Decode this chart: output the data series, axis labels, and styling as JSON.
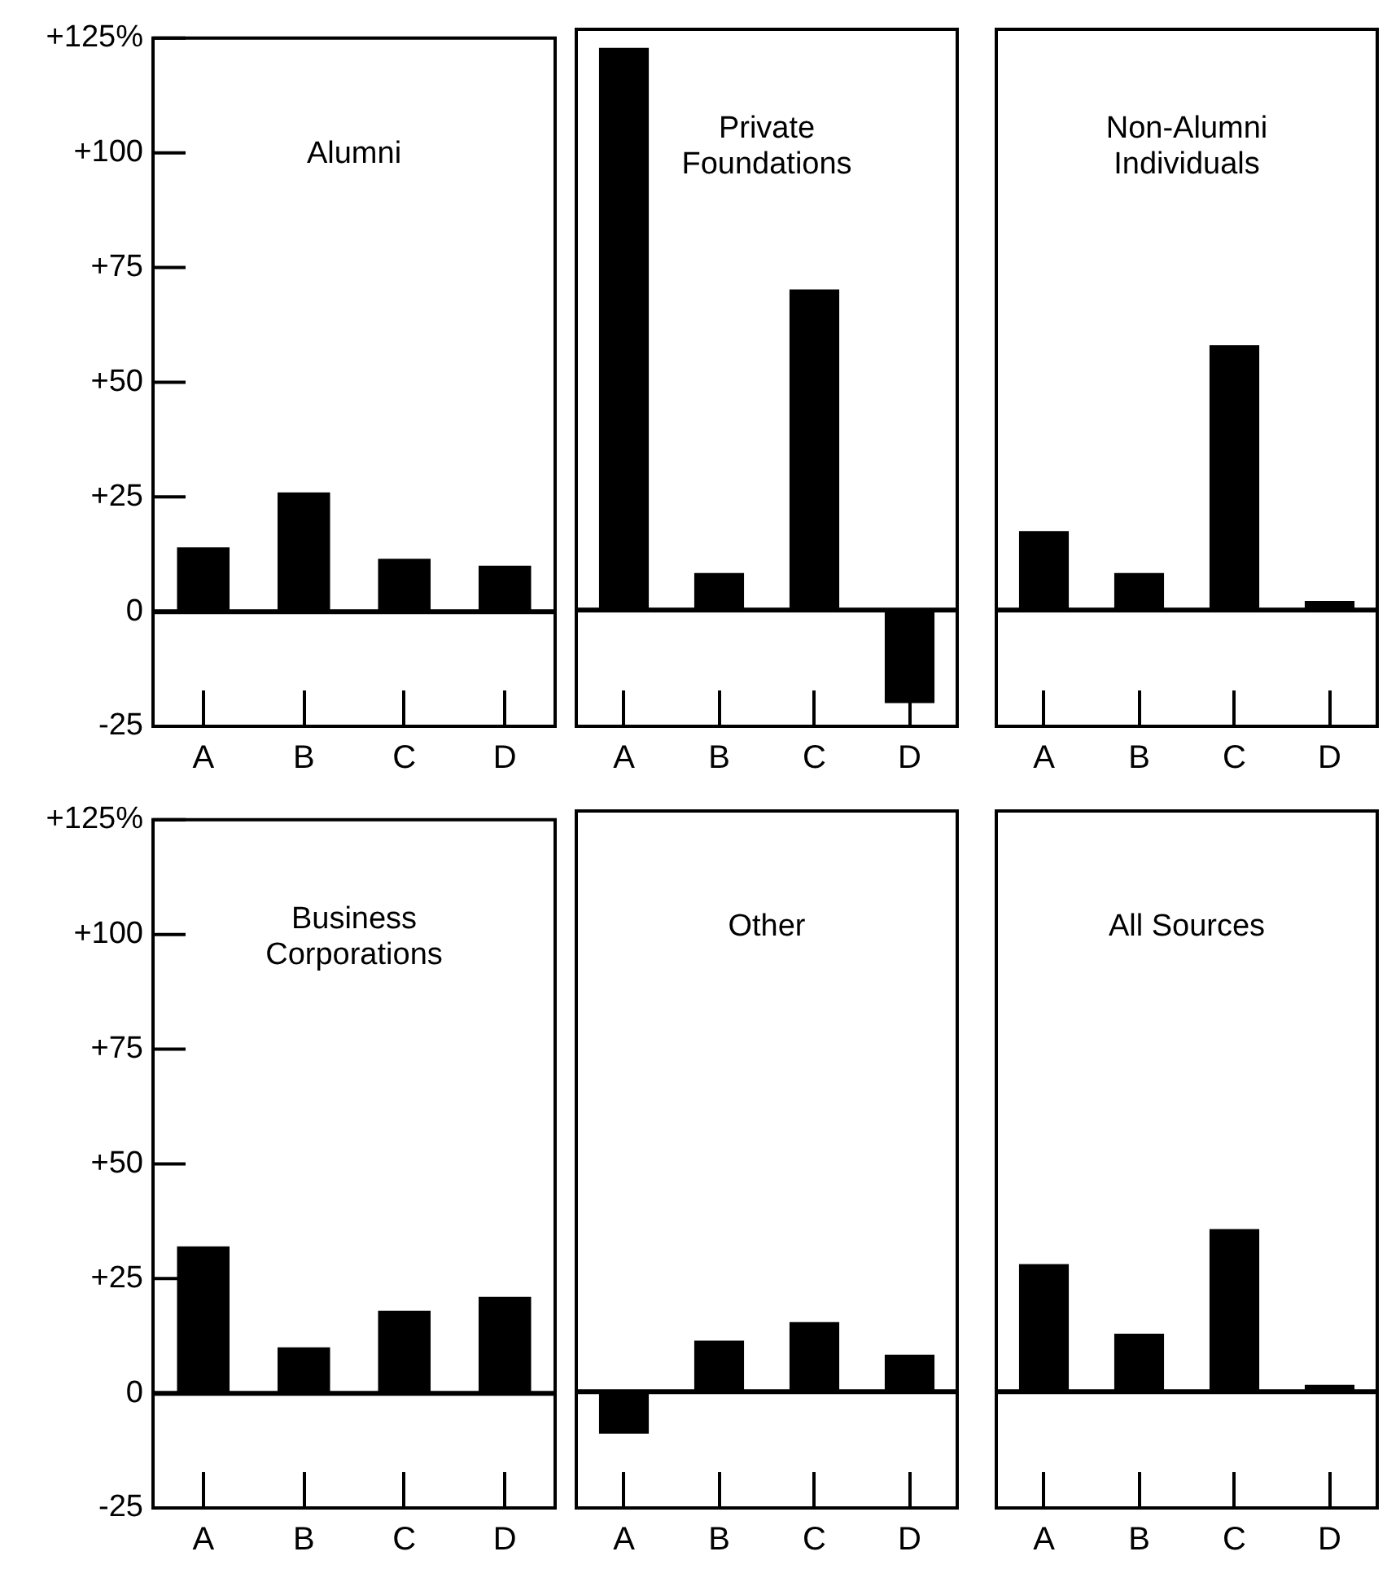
{
  "chart_data": [
    {
      "type": "bar",
      "title": "Alumni",
      "categories": [
        "A",
        "B",
        "C",
        "D"
      ],
      "values": [
        14,
        26,
        11.5,
        10
      ],
      "color": "#000000",
      "ylim": [
        -25,
        125
      ],
      "yticks": [
        {
          "value": -25,
          "label": "-25"
        },
        0,
        {
          "value": 25,
          "label": "+25"
        },
        {
          "value": 50,
          "label": "+50"
        },
        {
          "value": 75,
          "label": "+75"
        },
        {
          "value": 100,
          "label": "+100"
        },
        {
          "value": 125,
          "label": "+125%"
        }
      ],
      "ref_lines": [
        {
          "axis": "y",
          "value": 0
        }
      ],
      "grid": false,
      "legend": false
    },
    {
      "type": "bar",
      "title": "Private Foundations",
      "categories": [
        "A",
        "B",
        "C",
        "D"
      ],
      "values": [
        121,
        8,
        69,
        -20
      ],
      "color": "#000000",
      "ylim": [
        -25,
        125
      ],
      "yticks": [
        -25,
        0,
        25,
        50,
        75,
        100,
        125
      ],
      "tick_labels": "x",
      "ref_lines": [
        {
          "axis": "y",
          "value": 0
        }
      ],
      "grid": false,
      "legend": false
    },
    {
      "type": "bar",
      "title": "Non-Alumni Individuals",
      "categories": [
        "A",
        "B",
        "C",
        "D"
      ],
      "values": [
        17,
        8,
        57,
        2
      ],
      "color": "#000000",
      "ylim": [
        -25,
        125
      ],
      "yticks": [
        -25,
        0,
        25,
        50,
        75,
        100,
        125
      ],
      "tick_labels": "x",
      "ref_lines": [
        {
          "axis": "y",
          "value": 0
        }
      ],
      "grid": false,
      "legend": false
    },
    {
      "type": "bar",
      "title": "Business Corporations",
      "categories": [
        "A",
        "B",
        "C",
        "D"
      ],
      "values": [
        32,
        10,
        18,
        21
      ],
      "color": "#000000",
      "ylim": [
        -25,
        125
      ],
      "yticks": [
        {
          "value": -25,
          "label": "-25"
        },
        0,
        {
          "value": 25,
          "label": "+25"
        },
        {
          "value": 50,
          "label": "+50"
        },
        {
          "value": 75,
          "label": "+75"
        },
        {
          "value": 100,
          "label": "+100"
        },
        {
          "value": 125,
          "label": "+125%"
        }
      ],
      "ref_lines": [
        {
          "axis": "y",
          "value": 0
        }
      ],
      "grid": false,
      "legend": false
    },
    {
      "type": "bar",
      "title": "Other",
      "categories": [
        "A",
        "B",
        "C",
        "D"
      ],
      "values": [
        -9,
        11,
        15,
        8
      ],
      "color": "#000000",
      "ylim": [
        -25,
        125
      ],
      "yticks": [
        -25,
        0,
        25,
        50,
        75,
        100,
        125
      ],
      "tick_labels": "x",
      "ref_lines": [
        {
          "axis": "y",
          "value": 0
        }
      ],
      "grid": false,
      "legend": false
    },
    {
      "type": "bar",
      "title": "All Sources",
      "categories": [
        "A",
        "B",
        "C",
        "D"
      ],
      "values": [
        27.5,
        12.5,
        35,
        1.5
      ],
      "color": "#000000",
      "ylim": [
        -25,
        125
      ],
      "yticks": [
        -25,
        0,
        25,
        50,
        75,
        100,
        125
      ],
      "tick_labels": "x",
      "ref_lines": [
        {
          "axis": "y",
          "value": 0
        }
      ],
      "grid": false,
      "legend": false
    }
  ]
}
